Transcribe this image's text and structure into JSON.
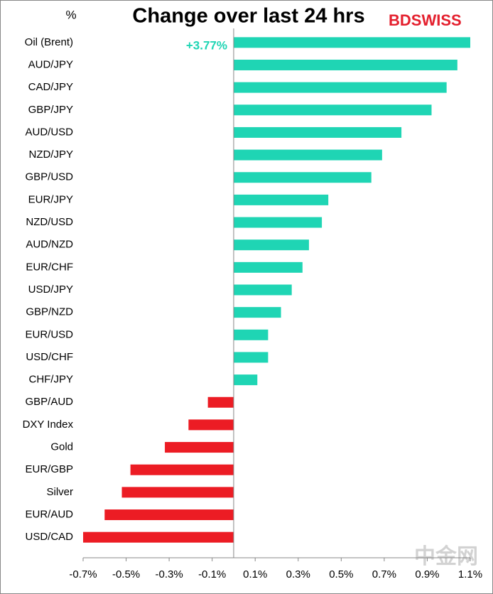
{
  "chart_data": {
    "type": "hbar",
    "title": "Change over last 24 hrs",
    "unit_label": "%",
    "brand": "BDSWISS",
    "watermark": "中金网",
    "categories": [
      "Oil (Brent)",
      "AUD/JPY",
      "CAD/JPY",
      "GBP/JPY",
      "AUD/USD",
      "NZD/JPY",
      "GBP/USD",
      "EUR/JPY",
      "NZD/USD",
      "AUD/NZD",
      "EUR/CHF",
      "USD/JPY",
      "GBP/NZD",
      "EUR/USD",
      "USD/CHF",
      "CHF/JPY",
      "GBP/AUD",
      "DXY Index",
      "Gold",
      "EUR/GBP",
      "Silver",
      "EUR/AUD",
      "USD/CAD"
    ],
    "values": [
      3.77,
      1.04,
      0.99,
      0.92,
      0.78,
      0.69,
      0.64,
      0.44,
      0.41,
      0.35,
      0.32,
      0.27,
      0.22,
      0.16,
      0.16,
      0.11,
      -0.12,
      -0.21,
      -0.32,
      -0.48,
      -0.52,
      -0.6,
      -0.7
    ],
    "value_labels": [
      "+3.77%",
      null,
      null,
      null,
      null,
      null,
      null,
      null,
      null,
      null,
      null,
      null,
      null,
      null,
      null,
      null,
      null,
      null,
      null,
      null,
      null,
      null,
      null
    ],
    "positive_color": "#1fd5b4",
    "negative_color": "#ec1c24",
    "xlim": [
      -0.7,
      1.1
    ],
    "xticks": [
      {
        "value": -0.7,
        "label": "-0.7%"
      },
      {
        "value": -0.5,
        "label": "-0.5%"
      },
      {
        "value": -0.3,
        "label": "-0.3%"
      },
      {
        "value": -0.1,
        "label": "-0.1%"
      },
      {
        "value": 0.1,
        "label": "0.1%"
      },
      {
        "value": 0.3,
        "label": "0.3%"
      },
      {
        "value": 0.5,
        "label": "0.5%"
      },
      {
        "value": 0.7,
        "label": "0.7%"
      },
      {
        "value": 0.9,
        "label": "0.9%"
      },
      {
        "value": 1.1,
        "label": "1.1%"
      }
    ],
    "grid": false
  }
}
